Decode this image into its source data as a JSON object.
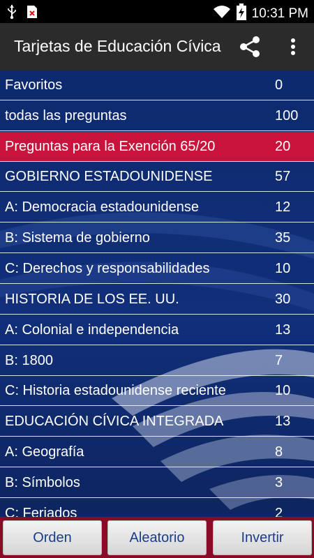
{
  "status_bar": {
    "time": "10:31 PM",
    "icons": [
      "usb-icon",
      "notification-error-icon",
      "wifi-icon",
      "battery-charging-icon"
    ]
  },
  "app_bar": {
    "title": "Tarjetas de Educación Cívica",
    "actions": [
      "share-icon",
      "more-vert-icon"
    ]
  },
  "list": {
    "rows": [
      {
        "label": "Favoritos",
        "count": "0"
      },
      {
        "label": "todas las preguntas",
        "count": "100"
      },
      {
        "label": "Preguntas para la Exención 65/20",
        "count": "20"
      },
      {
        "label": "GOBIERNO ESTADOUNIDENSE",
        "count": "57"
      },
      {
        "label": "A: Democracia estadounidense",
        "count": "12"
      },
      {
        "label": "B: Sistema de gobierno",
        "count": "35"
      },
      {
        "label": "C: Derechos y responsabilidades",
        "count": "10"
      },
      {
        "label": "HISTORIA DE LOS EE. UU.",
        "count": "30"
      },
      {
        "label": "A: Colonial e independencia",
        "count": "13"
      },
      {
        "label": "B: 1800",
        "count": "7"
      },
      {
        "label": "C: Historia estadounidense reciente",
        "count": "10"
      },
      {
        "label": "EDUCACIÓN CÍVICA INTEGRADA",
        "count": "13"
      },
      {
        "label": "A: Geografía",
        "count": "8"
      },
      {
        "label": "B: Símbolos",
        "count": "3"
      },
      {
        "label": "C: Feriados",
        "count": "2"
      }
    ]
  },
  "bottom_bar": {
    "order_label": "Orden",
    "random_label": "Aleatorio",
    "invert_label": "Invertir"
  },
  "colors": {
    "highlight": "#c8143c",
    "list_bg": "#0e2a6e",
    "app_bar": "#2b2b2b",
    "button_text": "#1a3c8a"
  }
}
